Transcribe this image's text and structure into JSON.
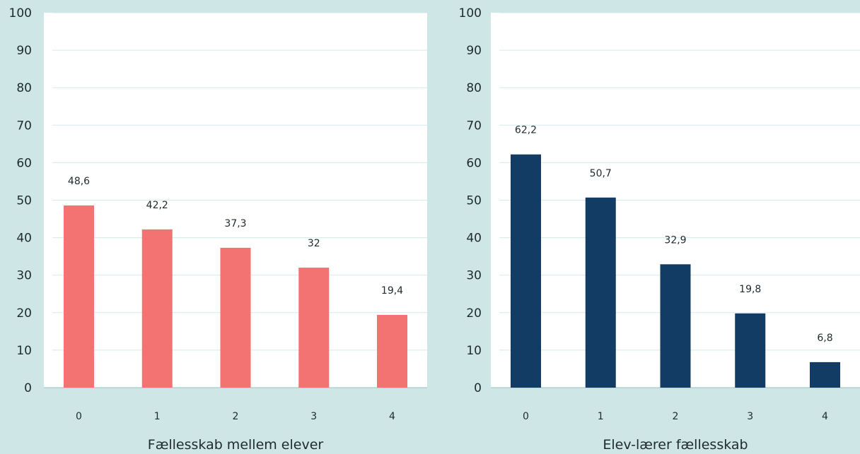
{
  "chart_data": [
    {
      "type": "bar",
      "title": "",
      "xlabel": "Fællesskab mellem elever",
      "ylabel": "",
      "categories": [
        "0",
        "1",
        "2",
        "3",
        "4"
      ],
      "values": [
        48.6,
        42.2,
        37.3,
        32,
        19.4
      ],
      "labels": [
        "48,6",
        "42,2",
        "37,3",
        "32",
        "19,4"
      ],
      "yticks": [
        "0",
        "10",
        "20",
        "30",
        "40",
        "50",
        "60",
        "70",
        "80",
        "90",
        "100"
      ],
      "ylim": [
        0,
        100
      ],
      "grid": true,
      "color": "#f37272"
    },
    {
      "type": "bar",
      "title": "",
      "xlabel": "Elev-lærer fællesskab",
      "ylabel": "",
      "categories": [
        "0",
        "1",
        "2",
        "3",
        "4"
      ],
      "values": [
        62.2,
        50.7,
        32.9,
        19.8,
        6.8
      ],
      "labels": [
        "62,2",
        "50,7",
        "32,9",
        "19,8",
        "6,8"
      ],
      "yticks": [
        "0",
        "10",
        "20",
        "30",
        "40",
        "50",
        "60",
        "70",
        "80",
        "90",
        "100"
      ],
      "ylim": [
        0,
        100
      ],
      "grid": true,
      "color": "#123c63"
    }
  ]
}
